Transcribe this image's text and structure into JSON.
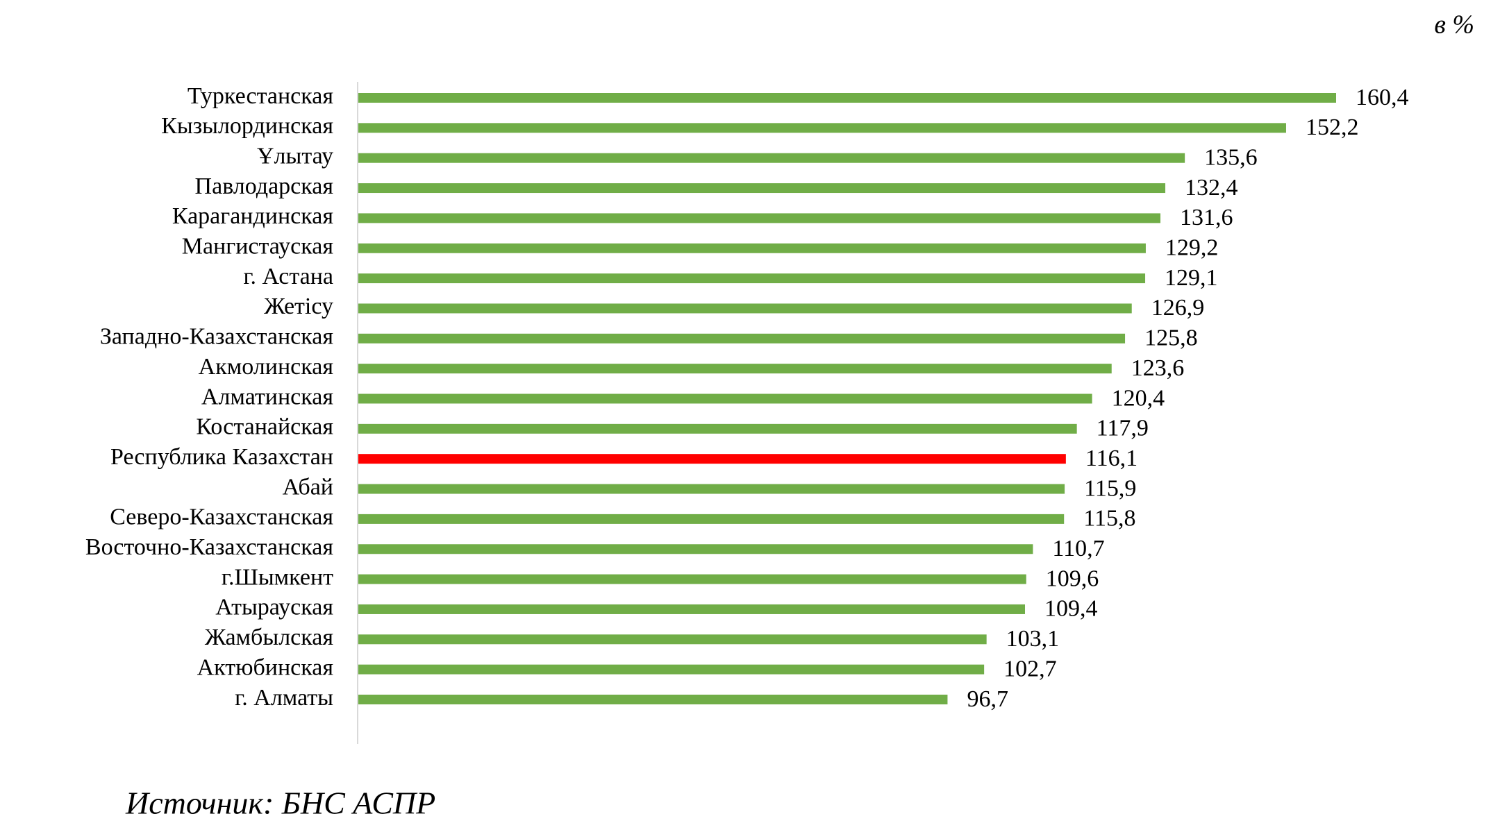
{
  "chart_data": {
    "type": "hbar",
    "unit_label": "в %",
    "source": "Источник: БНС АСПР",
    "categories": [
      "Туркестанская",
      "Кызылординская",
      "Ұлытау",
      "Павлодарская",
      "Карагандинская",
      "Мангистауская",
      "г. Астана",
      "Жетісу",
      "Западно-Казахстанская",
      "Акмолинская",
      "Алматинская",
      "Костанайская",
      "Республика Казахстан",
      "Абай",
      "Северо-Казахстанская",
      "Восточно-Казахстанская",
      "г.Шымкент",
      "Атырауская",
      "Жамбылская",
      "Актюбинская",
      "г. Алматы"
    ],
    "values": [
      160.4,
      152.2,
      135.6,
      132.4,
      131.6,
      129.2,
      129.1,
      126.9,
      125.8,
      123.6,
      120.4,
      117.9,
      116.1,
      115.9,
      115.8,
      110.7,
      109.6,
      109.4,
      103.1,
      102.7,
      96.7
    ],
    "value_labels": [
      "160,4",
      "152,2",
      "135,6",
      "132,4",
      "131,6",
      "129,2",
      "129,1",
      "126,9",
      "125,8",
      "123,6",
      "120,4",
      "117,9",
      "116,1",
      "115,9",
      "115,8",
      "110,7",
      "109,6",
      "109,4",
      "103,1",
      "102,7",
      "96,7"
    ],
    "colors": [
      "#70ad47",
      "#70ad47",
      "#70ad47",
      "#70ad47",
      "#70ad47",
      "#70ad47",
      "#70ad47",
      "#70ad47",
      "#70ad47",
      "#70ad47",
      "#70ad47",
      "#70ad47",
      "#ff0000",
      "#70ad47",
      "#70ad47",
      "#70ad47",
      "#70ad47",
      "#70ad47",
      "#70ad47",
      "#70ad47",
      "#70ad47"
    ]
  }
}
